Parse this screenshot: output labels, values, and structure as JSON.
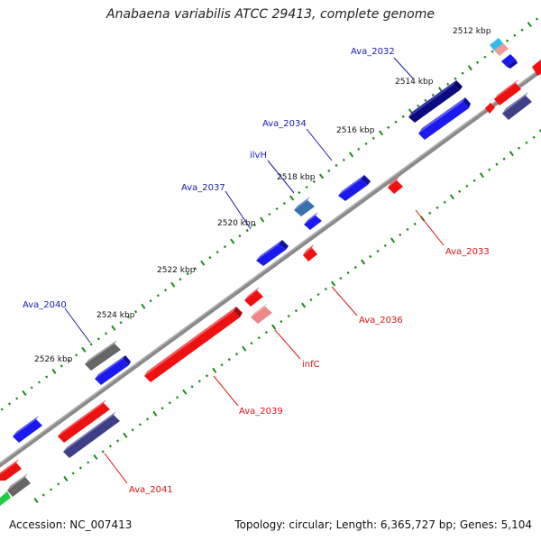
{
  "title": "Anabaena variabilis ATCC 29413, complete genome",
  "accession_label": "Accession: NC_007413",
  "summary_label": "Topology: circular; Length: 6,365,727 bp; Genes: 5,104",
  "colors": {
    "forward_gene": "#1a1aee",
    "reverse_gene": "#ee1111",
    "backbone": "#8a8a8a",
    "tick_dots": "#1d8a1d",
    "forward_label": "#1a1ab0",
    "reverse_label": "#dd1111"
  },
  "kbp_ticks": [
    {
      "label": "2512 kbp"
    },
    {
      "label": "2514 kbp"
    },
    {
      "label": "2516 kbp"
    },
    {
      "label": "2518 kbp"
    },
    {
      "label": "2520 kbp"
    },
    {
      "label": "2522 kbp"
    },
    {
      "label": "2524 kbp"
    },
    {
      "label": "2526 kbp"
    }
  ],
  "gene_labels_forward": [
    {
      "name": "Ava_2032"
    },
    {
      "name": "Ava_2034"
    },
    {
      "name": "ilvH"
    },
    {
      "name": "Ava_2037"
    },
    {
      "name": "Ava_2040"
    }
  ],
  "gene_labels_reverse": [
    {
      "name": "Ava_2033"
    },
    {
      "name": "Ava_2036"
    },
    {
      "name": "infC"
    },
    {
      "name": "Ava_2039"
    },
    {
      "name": "Ava_2041"
    }
  ]
}
